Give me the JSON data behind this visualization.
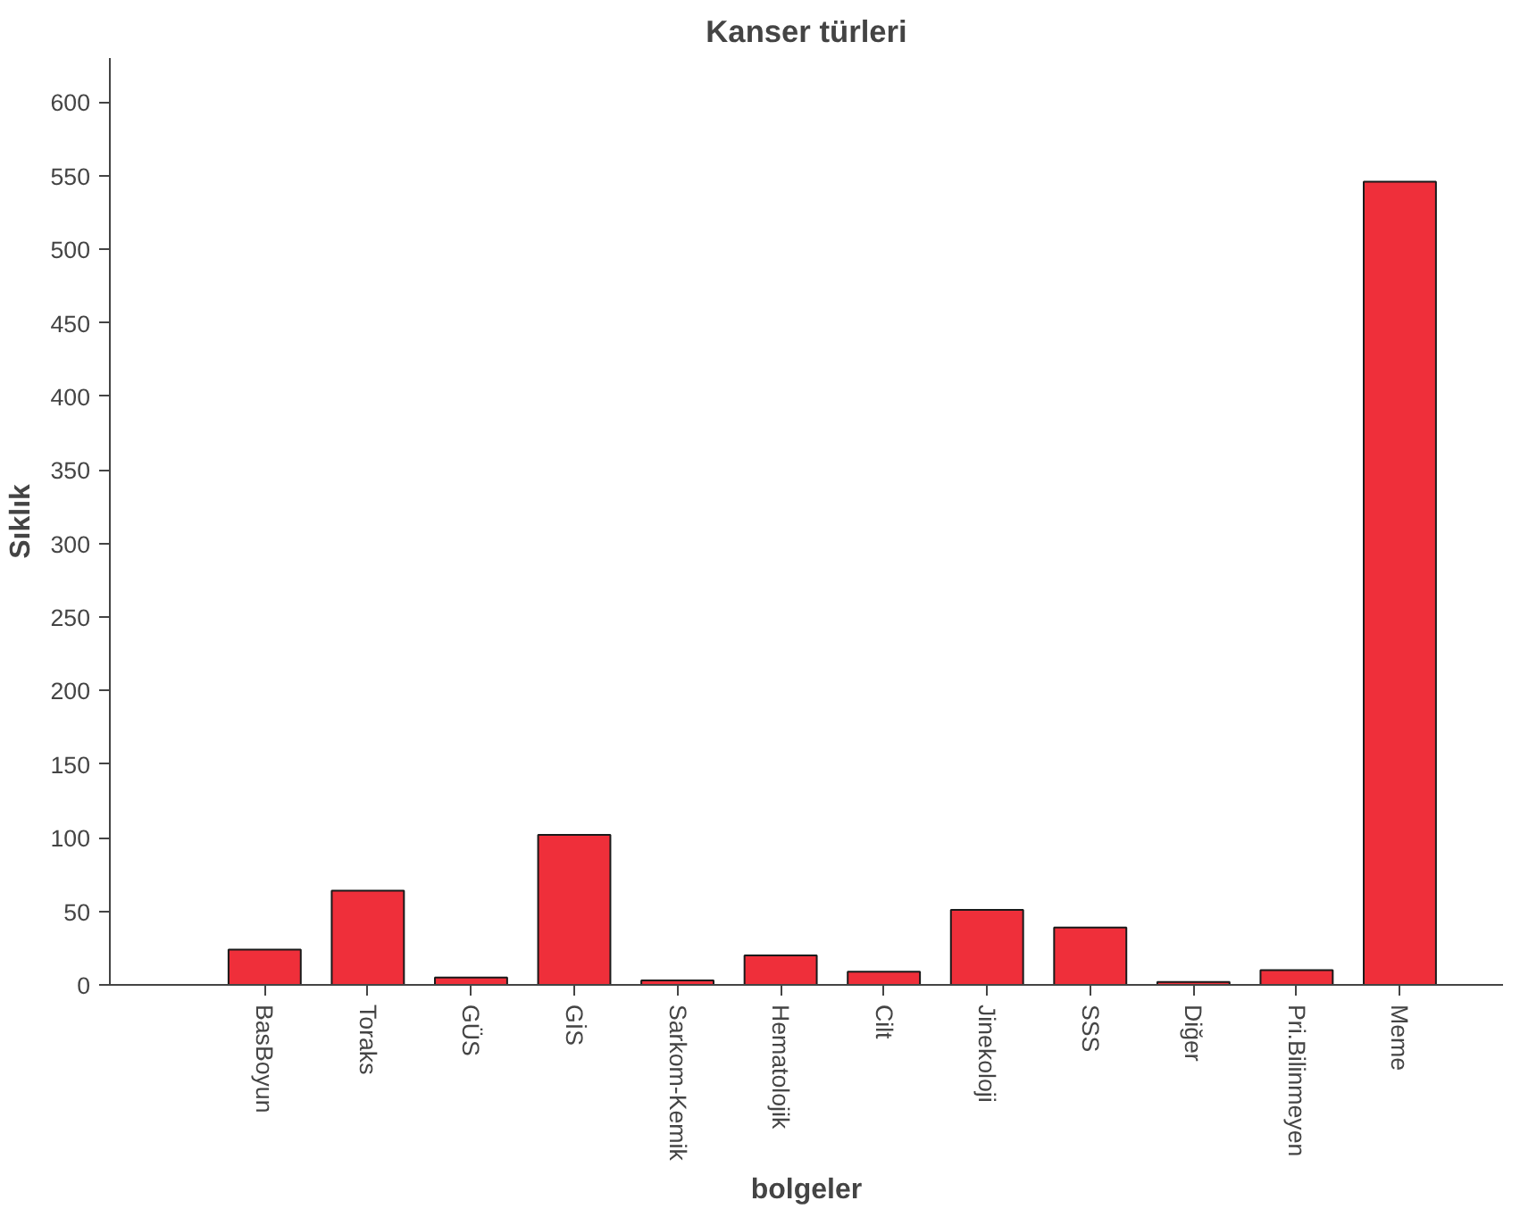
{
  "chart_data": {
    "type": "bar",
    "title": "Kanser türleri",
    "xlabel": "bolgeler",
    "ylabel": "Sıklık",
    "categories": [
      "BasBoyun",
      "Toraks",
      "GÜS",
      "GİS",
      "Sarkom-Kemik",
      "Hematolojik",
      "Cilt",
      "Jinekoloji",
      "SSS",
      "Diğer",
      "Pri.Bilinmeyen",
      "Meme"
    ],
    "values": [
      24,
      64,
      5,
      102,
      3,
      20,
      9,
      51,
      39,
      2,
      10,
      546
    ],
    "color": "#ef2f3a",
    "ylim": [
      0,
      630
    ],
    "yticks": [
      0,
      50,
      100,
      150,
      200,
      250,
      300,
      350,
      400,
      450,
      500,
      550,
      600
    ],
    "grid": false
  }
}
